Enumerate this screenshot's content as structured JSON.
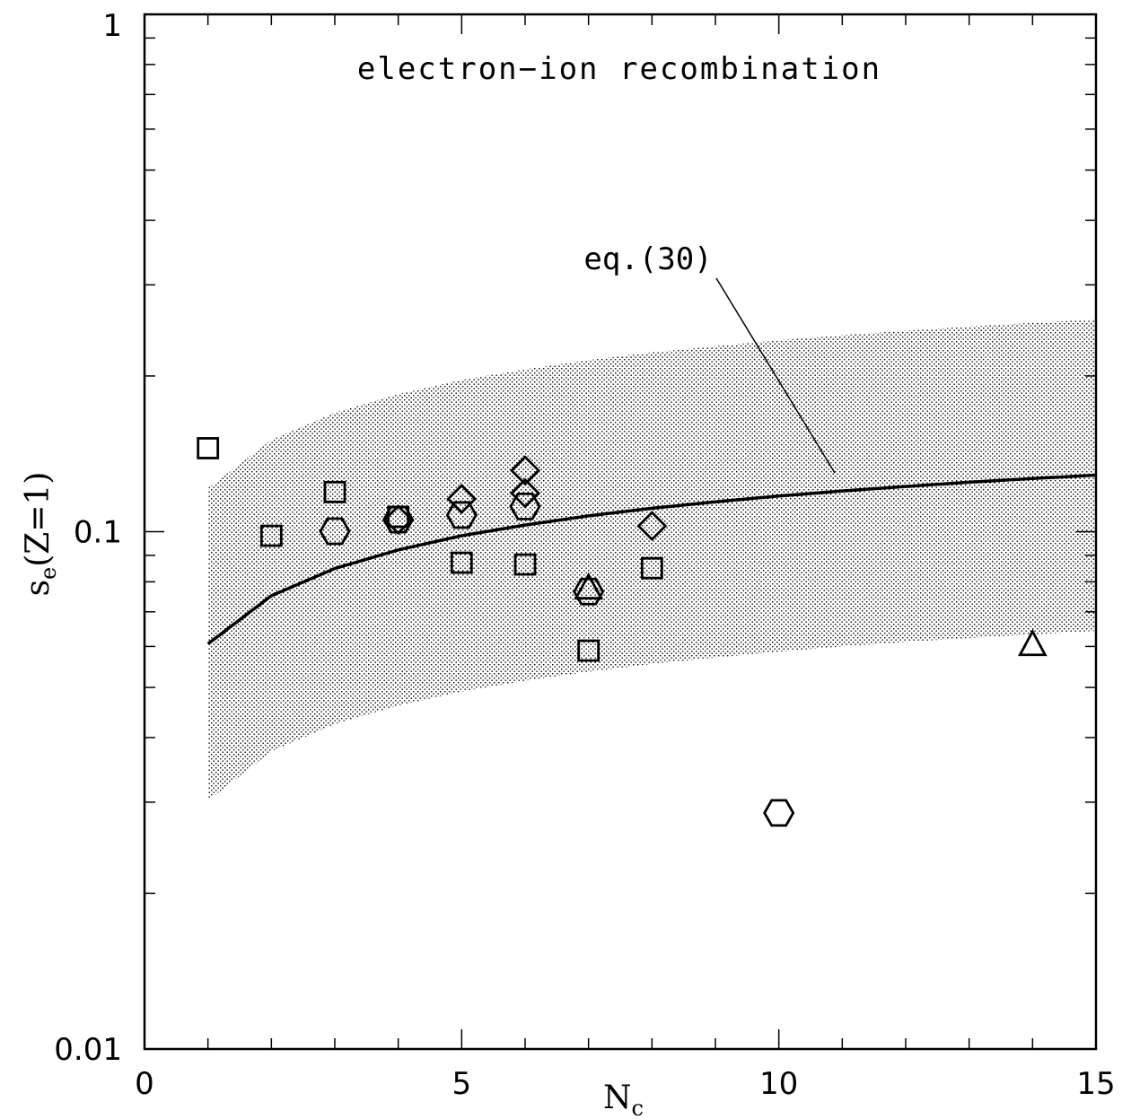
{
  "chart_data": {
    "type": "scatter",
    "title": "",
    "annotation": "electron−ion recombination",
    "curve_label": "eq.(30)",
    "xlabel": {
      "main": "N",
      "sub": "c"
    },
    "ylabel": {
      "main": "s",
      "sub": "e",
      "rest": "(Z=1)"
    },
    "xlim": [
      0,
      15
    ],
    "ylim": [
      0.01,
      1
    ],
    "yscale": "log",
    "x_ticks": [
      {
        "value": 0,
        "label": "0"
      },
      {
        "value": 5,
        "label": "5"
      },
      {
        "value": 10,
        "label": "10"
      },
      {
        "value": 15,
        "label": "15"
      }
    ],
    "y_ticks": [
      {
        "value": 0.01,
        "label": "0.01"
      },
      {
        "value": 0.1,
        "label": "0.1"
      },
      {
        "value": 1,
        "label": "1"
      }
    ],
    "eq30_curve": {
      "x": [
        1,
        2,
        3,
        4,
        5,
        6,
        7,
        8,
        9,
        10,
        11,
        12,
        13,
        14,
        15
      ],
      "y": [
        0.0607,
        0.0752,
        0.0849,
        0.0922,
        0.0982,
        0.103,
        0.1073,
        0.111,
        0.1142,
        0.1172,
        0.1199,
        0.1223,
        0.1246,
        0.1267,
        0.1286
      ]
    },
    "shaded_band": {
      "x": [
        1,
        2,
        3,
        4,
        5,
        6,
        7,
        8,
        9,
        10,
        11,
        12,
        13,
        14,
        15
      ],
      "lower": [
        0.0302,
        0.0376,
        0.0425,
        0.0461,
        0.0491,
        0.0515,
        0.0536,
        0.0555,
        0.0571,
        0.0586,
        0.06,
        0.0612,
        0.0623,
        0.0633,
        0.0643
      ],
      "upper": [
        0.1214,
        0.1504,
        0.1698,
        0.1844,
        0.1964,
        0.206,
        0.2146,
        0.222,
        0.2284,
        0.2344,
        0.2398,
        0.2446,
        0.2492,
        0.2534,
        0.2572
      ]
    },
    "series": [
      {
        "marker": "square",
        "points": [
          {
            "x": 1,
            "y": 0.145
          },
          {
            "x": 2,
            "y": 0.0982
          },
          {
            "x": 3,
            "y": 0.1193
          },
          {
            "x": 4,
            "y": 0.1068
          },
          {
            "x": 5,
            "y": 0.0871
          },
          {
            "x": 6,
            "y": 0.0864
          },
          {
            "x": 7,
            "y": 0.0589
          },
          {
            "x": 8,
            "y": 0.085
          }
        ]
      },
      {
        "marker": "hexagon",
        "points": [
          {
            "x": 3,
            "y": 0.1002
          },
          {
            "x": 4,
            "y": 0.1055
          },
          {
            "x": 5,
            "y": 0.1077
          },
          {
            "x": 6,
            "y": 0.1119
          },
          {
            "x": 7,
            "y": 0.0766
          },
          {
            "x": 10,
            "y": 0.0286
          }
        ]
      },
      {
        "marker": "diamond",
        "points": [
          {
            "x": 4,
            "y": 0.1055
          },
          {
            "x": 5,
            "y": 0.1157
          },
          {
            "x": 6,
            "y": 0.1187
          },
          {
            "x": 6,
            "y": 0.1313
          },
          {
            "x": 8,
            "y": 0.1026
          }
        ]
      },
      {
        "marker": "triangle",
        "points": [
          {
            "x": 7,
            "y": 0.0777
          },
          {
            "x": 14,
            "y": 0.0604
          }
        ]
      }
    ]
  }
}
